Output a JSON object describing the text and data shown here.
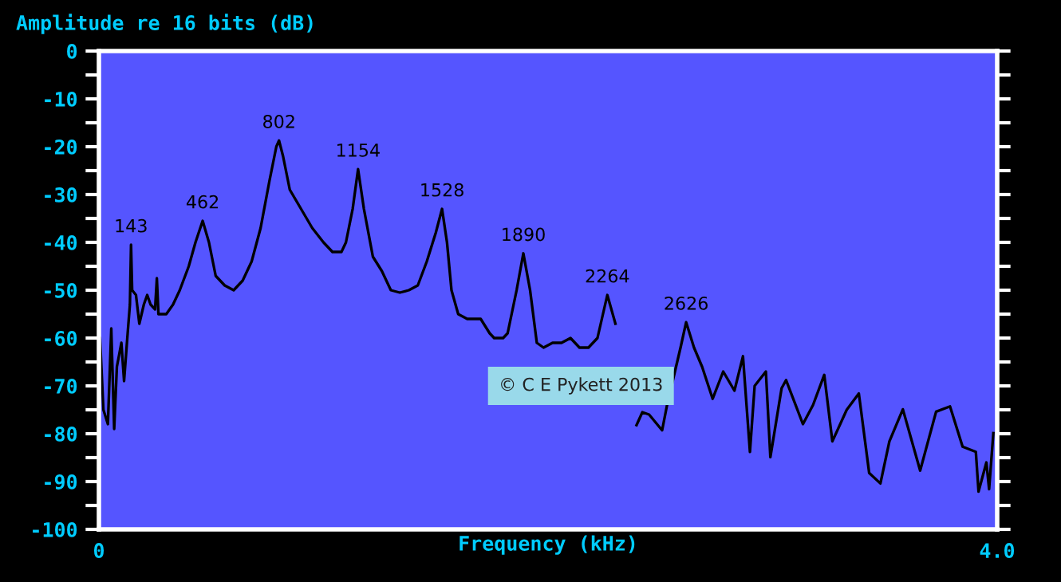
{
  "chart_data": {
    "type": "line",
    "ylabel": "Amplitude re 16 bits (dB)",
    "xlabel": "Frequency (kHz)",
    "xlim": [
      0,
      4
    ],
    "xticks": [
      0,
      {
        "value": 4,
        "label": "4.0"
      }
    ],
    "ylim": [
      -100,
      0
    ],
    "yticks": [
      0,
      {
        "value": -5,
        "label": null
      },
      -10,
      {
        "value": -15,
        "label": null
      },
      -20,
      {
        "value": -25,
        "label": null
      },
      -30,
      {
        "value": -35,
        "label": null
      },
      -40,
      {
        "value": -45,
        "label": null
      },
      -50,
      {
        "value": -55,
        "label": null
      },
      -60,
      {
        "value": -65,
        "label": null
      },
      -70,
      {
        "value": -75,
        "label": null
      },
      -80,
      {
        "value": -85,
        "label": null
      },
      -90,
      {
        "value": -95,
        "label": null
      },
      -100
    ],
    "grid": false,
    "marker": "none",
    "line_style": "solid",
    "series": [
      {
        "color": "#000000",
        "x": [
          0.005,
          0.02,
          0.04,
          0.055,
          0.068,
          0.08,
          0.1,
          0.112,
          0.128,
          0.138,
          0.143,
          0.148,
          0.165,
          0.18,
          0.2,
          0.215,
          0.23,
          0.25,
          0.258,
          0.265,
          0.3,
          0.33,
          0.36,
          0.4,
          0.43,
          0.462,
          0.49,
          0.52,
          0.56,
          0.6,
          0.64,
          0.68,
          0.72,
          0.76,
          0.79,
          0.802,
          0.82,
          0.85,
          0.9,
          0.95,
          1.0,
          1.04,
          1.08,
          1.1,
          1.13,
          1.154,
          1.18,
          1.22,
          1.26,
          1.3,
          1.34,
          1.38,
          1.42,
          1.46,
          1.5,
          1.528,
          1.55,
          1.57,
          1.6,
          1.64,
          1.7,
          1.74,
          1.76,
          1.8,
          1.82,
          1.86,
          1.89,
          1.92,
          1.95,
          1.98,
          2.02,
          2.06,
          2.1,
          2.14,
          2.18,
          2.22,
          2.264,
          2.3,
          2.34,
          2.378,
          2.394,
          2.42,
          2.45,
          2.508,
          2.53,
          2.56,
          2.59,
          2.615,
          2.65,
          2.686,
          2.733,
          2.78,
          2.83,
          2.868,
          2.899,
          2.92,
          2.97,
          2.99,
          3.04,
          3.06,
          3.135,
          3.18,
          3.23,
          3.266,
          3.33,
          3.384,
          3.43,
          3.48,
          3.52,
          3.58,
          3.657,
          3.728,
          3.79,
          3.846,
          3.905,
          3.917,
          3.952,
          3.964,
          3.983
        ],
        "values": [
          -60,
          -75,
          -78,
          -58,
          -79,
          -66,
          -61,
          -69,
          -59,
          -53,
          -40.5,
          -50,
          -51,
          -57,
          -53,
          -51,
          -53,
          -54,
          -47.5,
          -55,
          -55,
          -53,
          -50,
          -45,
          -40,
          -35.5,
          -40,
          -47,
          -49,
          -50,
          -48,
          -44,
          -37,
          -27,
          -20,
          -18.7,
          -22,
          -29,
          -33,
          -37,
          -40,
          -42,
          -42,
          -40,
          -33,
          -24.7,
          -33,
          -43,
          -46,
          -50,
          -50.5,
          -50,
          -49,
          -44,
          -38,
          -33,
          -40,
          -50,
          -55,
          -56,
          -56,
          -59,
          -60,
          -60,
          -59,
          -50,
          -42.3,
          -50,
          -61,
          -62,
          -61,
          -61,
          -60,
          -62,
          -62,
          -60,
          -51,
          -57,
          null,
          null,
          -78.2,
          -75.5,
          -76,
          -79.3,
          -74,
          -68,
          -62,
          -56.7,
          -62,
          -66,
          -72.7,
          -67,
          -71,
          -63.8,
          -83.8,
          -70,
          -67,
          -84.9,
          -70.5,
          -68.8,
          -78,
          -74,
          -67.7,
          -81.6,
          -75,
          -71.6,
          -88.2,
          -90.4,
          -81.6,
          -74.9,
          -87.7,
          -75.4,
          -74.3,
          -82.7,
          -83.8,
          -92.1,
          -86,
          -91.6,
          -79.9
        ]
      }
    ],
    "annotations": [
      {
        "text": "143",
        "x": 0.143,
        "y": -40.5
      },
      {
        "text": "462",
        "x": 0.462,
        "y": -35.5
      },
      {
        "text": "802",
        "x": 0.802,
        "y": -18.7
      },
      {
        "text": "1154",
        "x": 1.154,
        "y": -24.7
      },
      {
        "text": "1528",
        "x": 1.528,
        "y": -33
      },
      {
        "text": "1890",
        "x": 1.89,
        "y": -42.3
      },
      {
        "text": "2264",
        "x": 2.264,
        "y": -51
      },
      {
        "text": "2626",
        "x": 2.615,
        "y": -56.7
      },
      "© C E Pykett 2013"
    ]
  }
}
